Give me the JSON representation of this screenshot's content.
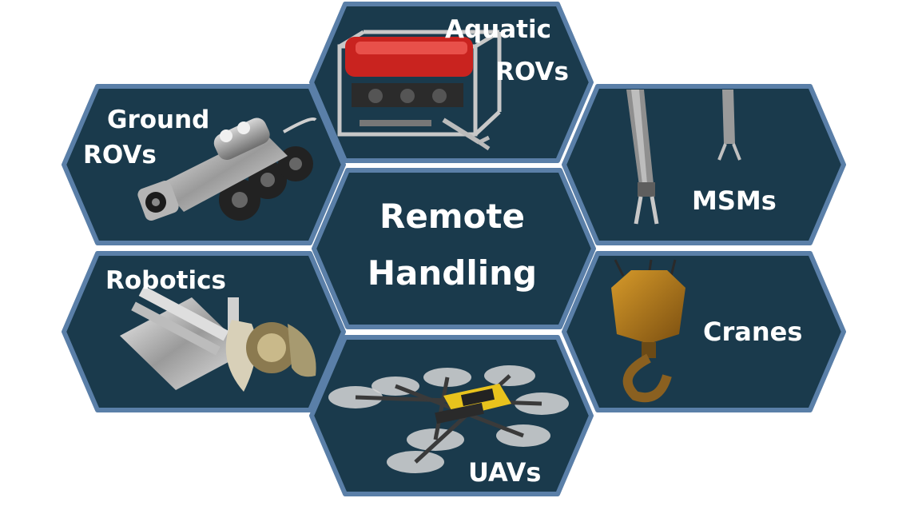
{
  "colors": {
    "hex_fill": "#1a3a4c",
    "hex_border": "#5a7fa8",
    "label": "#ffffff"
  },
  "center": {
    "line1": "Remote",
    "line2": "Handling"
  },
  "aquatic": {
    "line1": "Aquatic",
    "line2": "ROVs",
    "icon": "underwater-rov-icon"
  },
  "ground": {
    "line1": "Ground",
    "line2": "ROVs",
    "icon": "tracked-robot-icon"
  },
  "msms": {
    "label": "MSMs",
    "icon": "master-slave-manipulator-icon"
  },
  "robotics": {
    "label": "Robotics",
    "icon": "robotic-arm-icon"
  },
  "cranes": {
    "label": "Cranes",
    "icon": "crane-hook-icon"
  },
  "uavs": {
    "label": "UAVs",
    "icon": "drone-icon"
  }
}
